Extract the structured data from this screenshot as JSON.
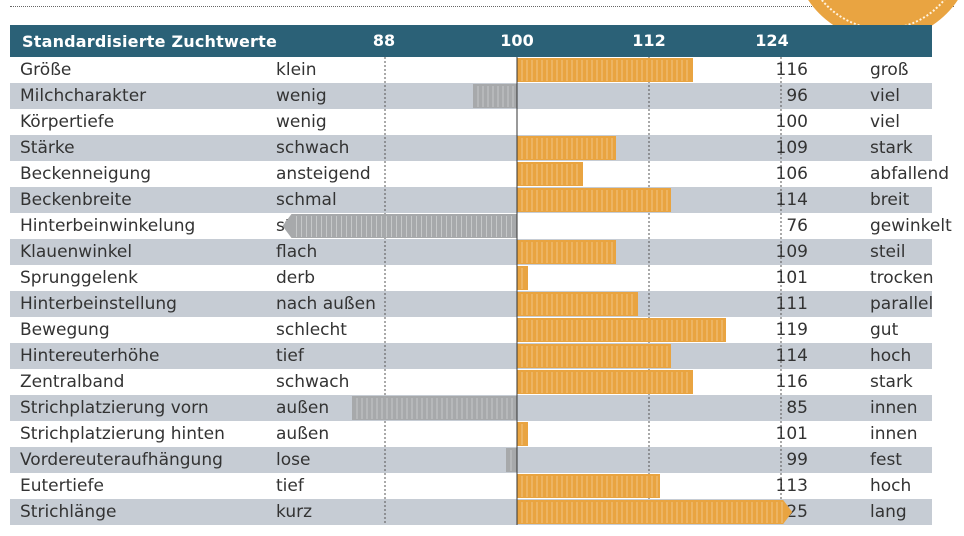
{
  "header": {
    "title": "Standardisierte Zuchtwerte"
  },
  "colors": {
    "header_bg": "#2b6177",
    "positive_bar": "#e9a441",
    "negative_bar": "#a7a9ab",
    "row_shade": "#c6ccd4",
    "badge": "#e9a441"
  },
  "chart_data": {
    "type": "bar",
    "orientation": "horizontal",
    "baseline": 100,
    "xlim": [
      76,
      126
    ],
    "xticks": [
      "88",
      "100",
      "112",
      "124"
    ],
    "tick_values": [
      88,
      100,
      112,
      124
    ],
    "grid": "dotted vertical lines at 88, 112, 124; solid at 100",
    "rows": [
      {
        "trait": "Größe",
        "low": "klein",
        "value": 116,
        "value_label": "116",
        "high": "groß"
      },
      {
        "trait": "Milchcharakter",
        "low": "wenig",
        "value": 96,
        "value_label": "96",
        "high": "viel"
      },
      {
        "trait": "Körpertiefe",
        "low": "wenig",
        "value": 100,
        "value_label": "100",
        "high": "viel"
      },
      {
        "trait": "Stärke",
        "low": "schwach",
        "value": 109,
        "value_label": "109",
        "high": "stark"
      },
      {
        "trait": "Beckenneigung",
        "low": "ansteigend",
        "value": 106,
        "value_label": "106",
        "high": "abfallend"
      },
      {
        "trait": "Beckenbreite",
        "low": "schmal",
        "value": 114,
        "value_label": "114",
        "high": "breit"
      },
      {
        "trait": "Hinterbeinwinkelung",
        "low": "steil",
        "value": 76,
        "value_label": "76",
        "high": "gewinkelt"
      },
      {
        "trait": "Klauenwinkel",
        "low": "flach",
        "value": 109,
        "value_label": "109",
        "high": "steil"
      },
      {
        "trait": "Sprunggelenk",
        "low": "derb",
        "value": 101,
        "value_label": "101",
        "high": "trocken"
      },
      {
        "trait": "Hinterbeinstellung",
        "low": "nach außen",
        "value": 111,
        "value_label": "111",
        "high": "parallel"
      },
      {
        "trait": "Bewegung",
        "low": "schlecht",
        "value": 119,
        "value_label": "119",
        "high": "gut"
      },
      {
        "trait": "Hintereuterhöhe",
        "low": "tief",
        "value": 114,
        "value_label": "114",
        "high": "hoch"
      },
      {
        "trait": "Zentralband",
        "low": "schwach",
        "value": 116,
        "value_label": "116",
        "high": "stark"
      },
      {
        "trait": "Strichplatzierung vorn",
        "low": "außen",
        "value": 85,
        "value_label": "85",
        "high": "innen"
      },
      {
        "trait": "Strichplatzierung hinten",
        "low": "außen",
        "value": 101,
        "value_label": "101",
        "high": "innen"
      },
      {
        "trait": "Vordereuteraufhängung",
        "low": "lose",
        "value": 99,
        "value_label": "99",
        "high": "fest"
      },
      {
        "trait": "Eutertiefe",
        "low": "tief",
        "value": 113,
        "value_label": "113",
        "high": "hoch"
      },
      {
        "trait": "Strichlänge",
        "low": "kurz",
        "value": 125,
        "value_label": "125",
        "high": "lang"
      }
    ]
  }
}
